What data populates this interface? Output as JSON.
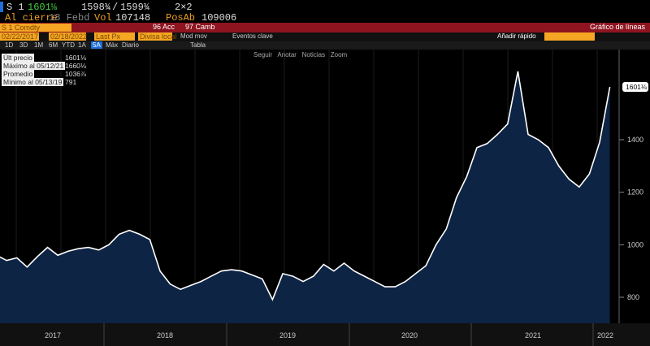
{
  "header": {
    "ticker": "S 1",
    "last": "1601⅛",
    "bid": "1598¾",
    "sep": "/",
    "ask": "1599¾",
    "size": "2×2",
    "close_label": "Al cierre",
    "close_date": "18 Febd",
    "vol_label": "Vol",
    "vol": "107148",
    "oi_label": "PosAb",
    "oi": "109006"
  },
  "bar": {
    "security": "S 1 Comdty",
    "actions": "96 Acc",
    "change": "97 Camb",
    "chart_type": "Gráfico de líneas"
  },
  "controls": {
    "start": "02/22/2017",
    "end": "02/18/2022",
    "field": "Last Px",
    "currency": "Divisa local",
    "mod": "Mod mov",
    "events": "Eventos clave",
    "quick_add": "Añadir rápido",
    "periods": [
      "1D",
      "3D",
      "1M",
      "6M",
      "YTD",
      "1A",
      "5A",
      "Máx"
    ],
    "freq": "Diario",
    "table": "Tabla",
    "tools": [
      "Seguir",
      "Anotar",
      "Noticias",
      "Zoom"
    ]
  },
  "legend": [
    {
      "label": "Últ precio",
      "value": "1601⅛"
    },
    {
      "label": "Máximo al 05/12/21",
      "value": "1660⅛"
    },
    {
      "label": "Promedio",
      "value": "1036⅞"
    },
    {
      "label": "Mínimo al 05/13/19",
      "value": "791"
    }
  ],
  "colors": {
    "line": "#ffffff",
    "area": "#0d2444",
    "accent": "#f5a623",
    "bar": "#8e1420"
  },
  "chart_data": {
    "type": "area",
    "title": "S 1 Comdty",
    "ylim": [
      700,
      1750
    ],
    "yticks": [
      800,
      1000,
      1200,
      1400
    ],
    "xticks": [
      "2017",
      "2018",
      "2019",
      "2020",
      "2021",
      "2022"
    ],
    "last_label": "1601⅛",
    "x": [
      "2017-02",
      "2017-03",
      "2017-04",
      "2017-05",
      "2017-06",
      "2017-07",
      "2017-08",
      "2017-09",
      "2017-10",
      "2017-11",
      "2017-12",
      "2018-01",
      "2018-02",
      "2018-03",
      "2018-04",
      "2018-05",
      "2018-06",
      "2018-07",
      "2018-08",
      "2018-09",
      "2018-10",
      "2018-11",
      "2018-12",
      "2019-01",
      "2019-02",
      "2019-03",
      "2019-04",
      "2019-05",
      "2019-06",
      "2019-07",
      "2019-08",
      "2019-09",
      "2019-10",
      "2019-11",
      "2019-12",
      "2020-01",
      "2020-02",
      "2020-03",
      "2020-04",
      "2020-05",
      "2020-06",
      "2020-07",
      "2020-08",
      "2020-09",
      "2020-10",
      "2020-11",
      "2020-12",
      "2021-01",
      "2021-02",
      "2021-03",
      "2021-04",
      "2021-05",
      "2021-06",
      "2021-07",
      "2021-08",
      "2021-09",
      "2021-10",
      "2021-11",
      "2021-12",
      "2022-01",
      "2022-02"
    ],
    "values": [
      960,
      940,
      950,
      915,
      955,
      990,
      960,
      975,
      985,
      990,
      980,
      1000,
      1040,
      1055,
      1040,
      1020,
      900,
      850,
      830,
      845,
      860,
      880,
      900,
      905,
      900,
      885,
      870,
      791,
      890,
      880,
      860,
      880,
      925,
      900,
      930,
      900,
      880,
      860,
      840,
      840,
      860,
      890,
      920,
      1000,
      1060,
      1180,
      1260,
      1370,
      1385,
      1420,
      1460,
      1660,
      1420,
      1400,
      1370,
      1300,
      1250,
      1220,
      1270,
      1390,
      1601
    ]
  }
}
